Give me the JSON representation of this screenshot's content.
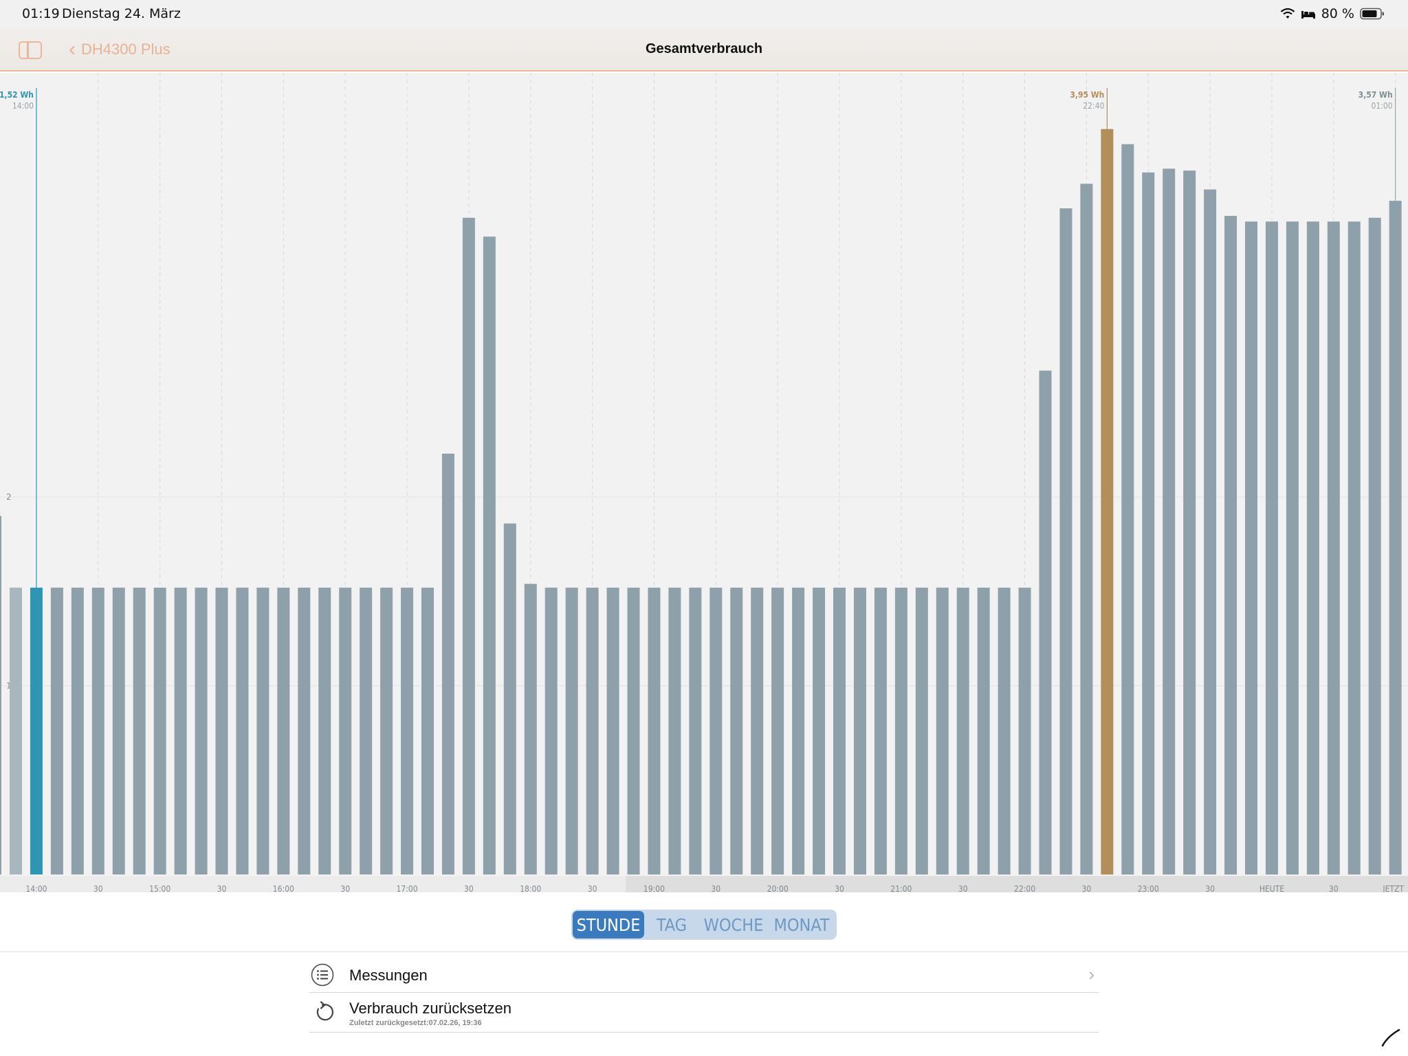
{
  "status_bar": {
    "time": "01:19",
    "date": "Dienstag 24. März",
    "battery": "80 %",
    "icons": [
      "wifi-icon",
      "bed-icon",
      "battery-icon"
    ]
  },
  "nav": {
    "back_label": "DH4300 Plus",
    "title": "Gesamtverbrauch",
    "icons": [
      "sidebar-toggle-icon",
      "chevron-left-icon"
    ]
  },
  "colors": {
    "accent": "#e8b293",
    "bar": "#8ea1aa",
    "bar_selected_start": "#2f96b2",
    "bar_peak": "#b18e5a",
    "segment_active": "#3a7bbf",
    "segment_bg": "#c6d8ea"
  },
  "chart_data": {
    "type": "bar",
    "unit": "Wh",
    "ylim": [
      0,
      4.2
    ],
    "y_ticks": [
      {
        "value": 2,
        "label": "2"
      },
      {
        "value": 1,
        "label": "1"
      }
    ],
    "x_tick_labels": [
      "14:00",
      "30",
      "15:00",
      "30",
      "16:00",
      "30",
      "17:00",
      "30",
      "18:00",
      "30",
      "19:00",
      "30",
      "20:00",
      "30",
      "21:00",
      "30",
      "22:00",
      "30",
      "23:00",
      "30",
      "HEUTE",
      "30",
      "JETZT"
    ],
    "bar_interval_minutes": 10,
    "first_bar_time": "13:50",
    "values": [
      1.52,
      1.52,
      1.52,
      1.52,
      1.52,
      1.52,
      1.52,
      1.52,
      1.52,
      1.52,
      1.52,
      1.52,
      1.52,
      1.52,
      1.52,
      1.52,
      1.52,
      1.52,
      1.52,
      1.52,
      1.52,
      2.23,
      3.48,
      3.38,
      1.86,
      1.54,
      1.52,
      1.52,
      1.52,
      1.52,
      1.52,
      1.52,
      1.52,
      1.52,
      1.52,
      1.52,
      1.52,
      1.52,
      1.52,
      1.52,
      1.52,
      1.52,
      1.52,
      1.52,
      1.52,
      1.52,
      1.52,
      1.52,
      1.52,
      1.52,
      2.67,
      3.53,
      3.66,
      3.95,
      3.87,
      3.72,
      3.74,
      3.73,
      3.63,
      3.49,
      3.46,
      3.46,
      3.46,
      3.46,
      3.46,
      3.46,
      3.48,
      3.57
    ],
    "highlighted": [
      {
        "index": 1,
        "value_label": "1,52 Wh",
        "time_label": "14:00",
        "role": "selected-start"
      },
      {
        "index": 53,
        "value_label": "3,95 Wh",
        "time_label": "22:40",
        "role": "peak"
      },
      {
        "index": 67,
        "value_label": "3,57 Wh",
        "time_label": "01:00",
        "role": "current"
      }
    ]
  },
  "segments": {
    "items": [
      "STUNDE",
      "TAG",
      "WOCHE",
      "MONAT"
    ],
    "selected": "STUNDE"
  },
  "list": {
    "measurements_label": "Messungen",
    "reset_label": "Verbrauch zurücksetzen",
    "reset_sub": "Zuletzt zurückgesetzt:07.02.26, 19:36",
    "icons": [
      "list-icon",
      "reset-arrow-icon",
      "chevron-right-icon"
    ]
  }
}
